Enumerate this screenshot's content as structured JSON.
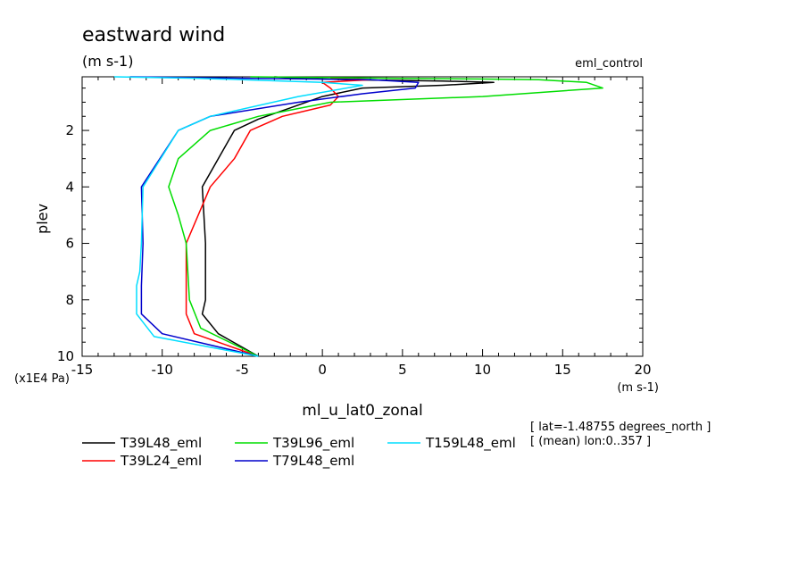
{
  "chart_data": {
    "type": "line",
    "title": "eastward wind",
    "units_label": "(m s-1)",
    "experiment": "eml_control",
    "xlabel": "ml_u_lat0_zonal",
    "x_units": "(m s-1)",
    "ylabel": "plev",
    "y_scale_label": "(x1E4 Pa)",
    "xlim": [
      -15,
      20
    ],
    "ylim": [
      0.1,
      10
    ],
    "y_inverted": true,
    "x_ticks": [
      "-15",
      "-10",
      "-5",
      "0",
      "5",
      "10",
      "15",
      "20"
    ],
    "y_ticks": [
      "2",
      "4",
      "6",
      "8",
      "10"
    ],
    "grid": false,
    "legend_position": "bottom",
    "info_lines": [
      "[ lat=-1.48755 degrees_north ]",
      "[ (mean) lon:0..357 ]"
    ],
    "colors": {
      "T39L48_eml": "#000000",
      "T39L24_eml": "#ff0000",
      "T39L96_eml": "#00dd00",
      "T79L48_eml": "#0000cc",
      "T159L48_eml": "#00ddff"
    },
    "series": [
      {
        "name": "T39L48_eml",
        "x": [
          -3,
          -1.5,
          1.5,
          7.5,
          10.7,
          7.5,
          2.5,
          0,
          -2,
          -4,
          -5.5,
          -6.5,
          -7.5,
          -7.3,
          -7.3,
          -7.5,
          -6.5,
          -4
        ],
        "y": [
          0.1,
          0.15,
          0.2,
          0.25,
          0.3,
          0.4,
          0.5,
          0.8,
          1.2,
          1.6,
          2.0,
          3.0,
          4.0,
          6.0,
          8.0,
          8.5,
          9.2,
          10.0
        ]
      },
      {
        "name": "T39L24_eml",
        "x": [
          0.5,
          3,
          0,
          0.5,
          1,
          0.5,
          -2.5,
          -4.5,
          -5.5,
          -7,
          -8.5,
          -8.5,
          -8.0,
          -4
        ],
        "y": [
          0.15,
          0.2,
          0.3,
          0.5,
          0.8,
          1.1,
          1.5,
          2.0,
          3.0,
          4.0,
          6.0,
          8.5,
          9.2,
          10.0
        ]
      },
      {
        "name": "T39L96_eml",
        "x": [
          -4.5,
          -1,
          4,
          10,
          13.5,
          16.5,
          17.5,
          10,
          0.5,
          -4,
          -7,
          -9,
          -9.6,
          -9,
          -8.5,
          -8.3,
          -7.6,
          -4
        ],
        "y": [
          0.1,
          0.12,
          0.15,
          0.18,
          0.2,
          0.3,
          0.5,
          0.8,
          1.0,
          1.5,
          2.0,
          3.0,
          4.0,
          5.0,
          6.0,
          8.0,
          9.0,
          10.0
        ]
      },
      {
        "name": "T79L48_eml",
        "x": [
          -12,
          -5,
          3,
          6,
          5.8,
          2.5,
          -1.5,
          -7,
          -9,
          -11.3,
          -11.2,
          -11.3,
          -11.3,
          -10,
          -4
        ],
        "y": [
          0.1,
          0.15,
          0.2,
          0.3,
          0.5,
          0.7,
          1.0,
          1.5,
          2.0,
          4.0,
          6.0,
          7.5,
          8.5,
          9.2,
          10.0
        ]
      },
      {
        "name": "T159L48_eml",
        "x": [
          -13,
          -8,
          -5,
          0,
          2.5,
          -1.5,
          -7,
          -9,
          -11.2,
          -11.3,
          -11.4,
          -11.6,
          -11.6,
          -10.5,
          -4
        ],
        "y": [
          0.1,
          0.15,
          0.2,
          0.3,
          0.4,
          0.8,
          1.5,
          2.0,
          4.0,
          6.0,
          7.0,
          7.5,
          8.5,
          9.3,
          10.0
        ]
      }
    ]
  }
}
